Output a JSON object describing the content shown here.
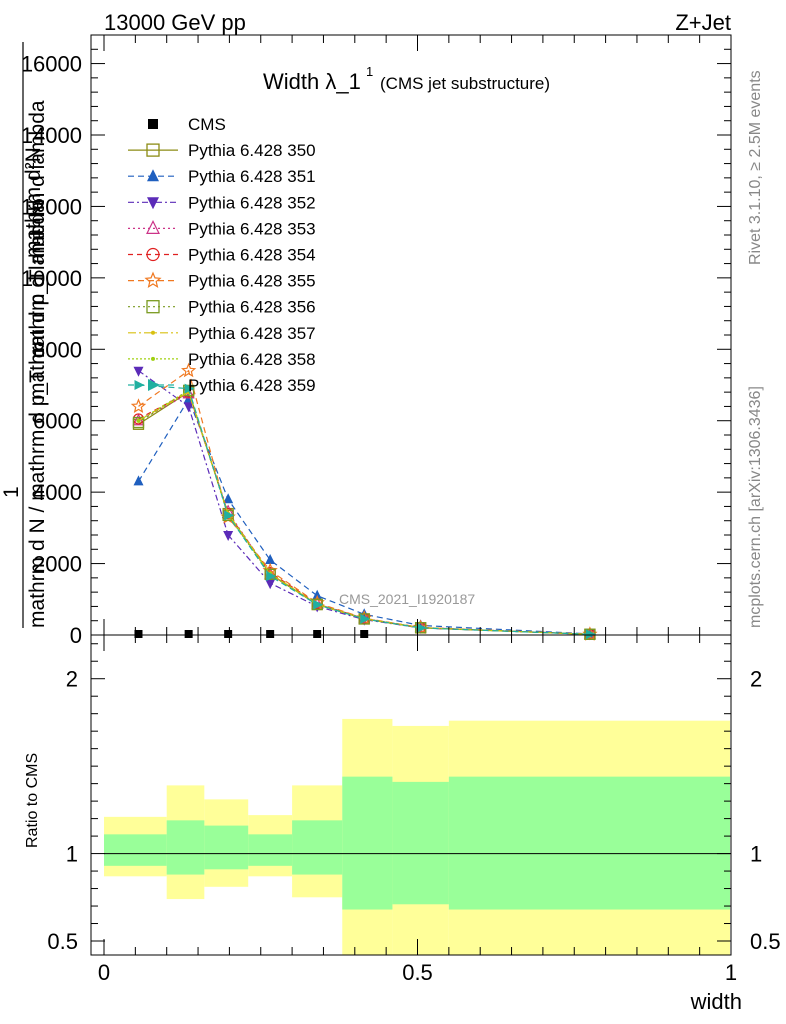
{
  "header": {
    "left": "13000 GeV pp",
    "right": "Z+Jet"
  },
  "side_labels": {
    "rivet": "Rivet 3.1.10, ≥ 2.5M events",
    "mcplots": "mcplots.cern.ch [arXiv:1306.3436]"
  },
  "chart_data": [
    {
      "type": "line",
      "title": "Width λ_1",
      "title_sup": "1",
      "title_suffix": "(CMS jet substructure)",
      "ylabel_lines": [
        "mathrm d²N",
        "1",
        "mathrm d N / mathrm d p",
        "T",
        "mathrm d p",
        "T",
        "mathrm d lambda",
        "mathrm d N / mathrm d p",
        "T",
        "mathrm d lambda"
      ],
      "ylabel_top": "mathrm d²N",
      "ylabel_mid": "mathrm d p_T mathrm d lambda",
      "ylabel_main": "1",
      "ylabel_bottom": "mathrm d N / mathrm d p_T mathrm d lambda",
      "watermark": "CMS_2021_I1920187",
      "xlim": [
        0,
        1
      ],
      "ylim": [
        0,
        16800
      ],
      "yticks": [
        0,
        2000,
        4000,
        6000,
        8000,
        10000,
        12000,
        14000,
        16000
      ],
      "ytick_labels": [
        "0",
        "2000",
        "4000",
        "6000",
        "8000",
        "10000",
        "12000",
        "14000",
        "16000"
      ],
      "grid": false,
      "legend_position": "top-left",
      "x": [
        0.055,
        0.135,
        0.198,
        0.265,
        0.34,
        0.415,
        0.505,
        0.775
      ],
      "cms": {
        "name": "CMS",
        "values": [
          0,
          0,
          0,
          0,
          0,
          0,
          0,
          0
        ],
        "color": "#000000"
      },
      "series": [
        {
          "name": "Pythia 6.428 350",
          "color": "#8c8c14",
          "marker": "square-open",
          "dash": "",
          "values": [
            5900,
            6800,
            3400,
            1700,
            850,
            450,
            200,
            20
          ]
        },
        {
          "name": "Pythia 6.428 351",
          "color": "#1f5fbf",
          "marker": "triangle-up",
          "dash": "6,4",
          "values": [
            4300,
            6600,
            3800,
            2100,
            1100,
            580,
            270,
            30
          ]
        },
        {
          "name": "Pythia 6.428 352",
          "color": "#5b2bb8",
          "marker": "triangle-down",
          "dash": "6,3,2,3",
          "values": [
            7400,
            6400,
            2800,
            1450,
            800,
            430,
            200,
            20
          ]
        },
        {
          "name": "Pythia 6.428 353",
          "color": "#cc3388",
          "marker": "triangle-open",
          "dash": "2,3",
          "values": [
            6000,
            6750,
            3450,
            1700,
            870,
            460,
            210,
            20
          ]
        },
        {
          "name": "Pythia 6.428 354",
          "color": "#e02020",
          "marker": "circle-open",
          "dash": "5,4",
          "values": [
            6050,
            6800,
            3400,
            1750,
            880,
            460,
            210,
            20
          ]
        },
        {
          "name": "Pythia 6.428 355",
          "color": "#f07820",
          "marker": "star-open",
          "dash": "6,4",
          "values": [
            6400,
            7400,
            3300,
            1800,
            900,
            470,
            210,
            20
          ]
        },
        {
          "name": "Pythia 6.428 356",
          "color": "#7a9a20",
          "marker": "square-open",
          "dash": "2,3",
          "values": [
            5950,
            6850,
            3350,
            1700,
            860,
            450,
            205,
            20
          ]
        },
        {
          "name": "Pythia 6.428 357",
          "color": "#d8c010",
          "marker": "dot",
          "dash": "8,3,2,3",
          "values": [
            6000,
            6800,
            3400,
            1720,
            860,
            455,
            205,
            20
          ]
        },
        {
          "name": "Pythia 6.428 358",
          "color": "#a0d010",
          "marker": "dot",
          "dash": "2,2",
          "values": [
            6000,
            6850,
            3380,
            1720,
            860,
            455,
            205,
            20
          ]
        },
        {
          "name": "Pythia 6.428 359",
          "color": "#20b0a0",
          "marker": "triangle-right",
          "dash": "6,4",
          "values": [
            7000,
            6900,
            3350,
            1650,
            850,
            450,
            200,
            20
          ]
        }
      ]
    },
    {
      "type": "area",
      "ylabel": "Ratio to CMS",
      "xlabel": "width",
      "xlim": [
        0,
        1
      ],
      "ylim": [
        0.42,
        2.25
      ],
      "yticks": [
        0.5,
        1,
        2
      ],
      "ytick_labels": [
        "0.5",
        "1",
        "2"
      ],
      "xticks": [
        0,
        0.5,
        1
      ],
      "xtick_labels": [
        "0",
        "0.5",
        "1"
      ],
      "reference_line": 1,
      "bins": [
        {
          "x0": 0.0,
          "x1": 0.1,
          "stat_lo": 0.93,
          "stat_hi": 1.11,
          "tot_lo": 0.87,
          "tot_hi": 1.21
        },
        {
          "x0": 0.1,
          "x1": 0.16,
          "stat_lo": 0.88,
          "stat_hi": 1.19,
          "tot_lo": 0.74,
          "tot_hi": 1.39
        },
        {
          "x0": 0.16,
          "x1": 0.23,
          "stat_lo": 0.91,
          "stat_hi": 1.16,
          "tot_lo": 0.81,
          "tot_hi": 1.31
        },
        {
          "x0": 0.23,
          "x1": 0.3,
          "stat_lo": 0.93,
          "stat_hi": 1.11,
          "tot_lo": 0.87,
          "tot_hi": 1.22
        },
        {
          "x0": 0.3,
          "x1": 0.38,
          "stat_lo": 0.88,
          "stat_hi": 1.19,
          "tot_lo": 0.75,
          "tot_hi": 1.39
        },
        {
          "x0": 0.38,
          "x1": 0.46,
          "stat_lo": 0.68,
          "stat_hi": 1.44,
          "tot_lo": 0.42,
          "tot_hi": 1.77
        },
        {
          "x0": 0.46,
          "x1": 0.55,
          "stat_lo": 0.71,
          "stat_hi": 1.41,
          "tot_lo": 0.42,
          "tot_hi": 1.73
        },
        {
          "x0": 0.55,
          "x1": 1.0,
          "stat_lo": 0.68,
          "stat_hi": 1.44,
          "tot_lo": 0.42,
          "tot_hi": 1.76
        }
      ],
      "colors": {
        "stat": "#99ff99",
        "tot": "#ffff99"
      }
    }
  ]
}
